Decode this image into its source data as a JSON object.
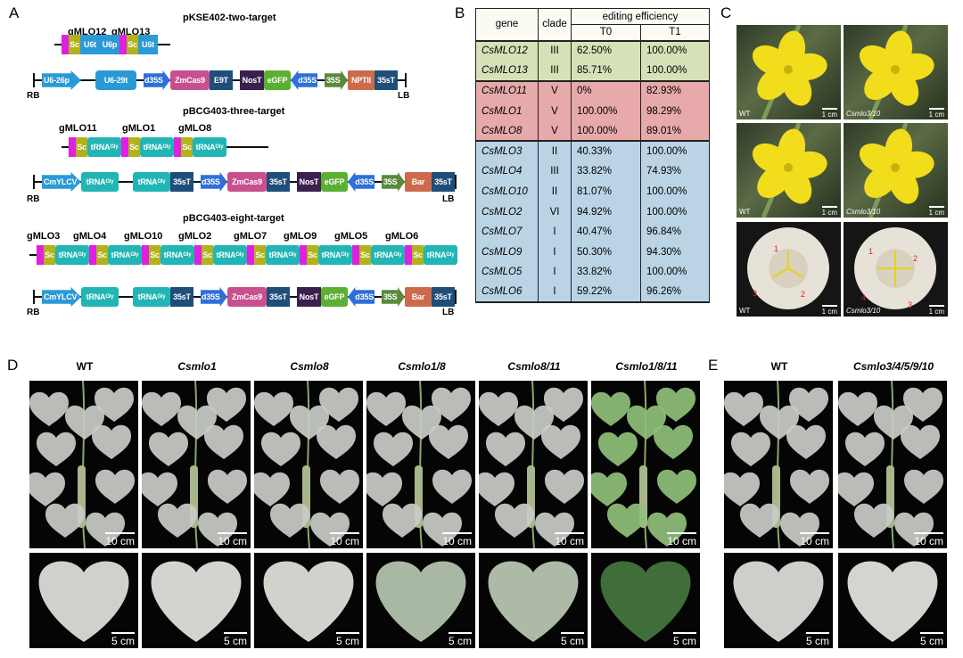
{
  "panels": {
    "A": "A",
    "B": "B",
    "C": "C",
    "D": "D",
    "E": "E"
  },
  "constructs": [
    {
      "title": "pKSE402-two-target",
      "guides": [
        "gMLO12",
        "gMLO13"
      ],
      "insert": [
        {
          "k": "mag",
          "t": ""
        },
        {
          "k": "sc",
          "t": "Sc"
        },
        {
          "k": "u6",
          "t": "U6t"
        },
        {
          "k": "u6",
          "t": "U6p"
        },
        {
          "k": "mag",
          "t": ""
        },
        {
          "k": "sc",
          "t": "Sc"
        },
        {
          "k": "u6",
          "t": "U6t"
        }
      ],
      "main": [
        {
          "k": "bar",
          "t": ""
        },
        {
          "k": "line",
          "t": ""
        },
        {
          "k": "arrowr",
          "t": "U6-26p"
        },
        {
          "k": "line",
          "t": ""
        },
        {
          "k": "line",
          "t": ""
        },
        {
          "k": "u6box",
          "t": "U6-29t"
        },
        {
          "k": "line",
          "t": ""
        },
        {
          "k": "arrowd",
          "t": "d35S"
        },
        {
          "k": "cas",
          "t": "ZmCas9"
        },
        {
          "k": "term",
          "t": "E9T"
        },
        {
          "k": "line",
          "t": ""
        },
        {
          "k": "nos",
          "t": "NosT"
        },
        {
          "k": "gfp",
          "t": "eGFP"
        },
        {
          "k": "arrowl",
          "t": "d35S"
        },
        {
          "k": "line",
          "t": ""
        },
        {
          "k": "arrowg",
          "t": "35S"
        },
        {
          "k": "sel",
          "t": "NPTII"
        },
        {
          "k": "term",
          "t": "35sT"
        },
        {
          "k": "line",
          "t": ""
        },
        {
          "k": "bar",
          "t": ""
        }
      ],
      "rb": "RB",
      "lb": "LB"
    },
    {
      "title": "pBCG403-three-target",
      "guides": [
        "gMLO11",
        "gMLO1",
        "gMLO8"
      ],
      "insert": [
        {
          "k": "mag",
          "t": ""
        },
        {
          "k": "sc",
          "t": "Sc"
        },
        {
          "k": "trna",
          "t": "tRNA",
          "sup": "Gly"
        },
        {
          "k": "mag",
          "t": ""
        },
        {
          "k": "sc",
          "t": "Sc"
        },
        {
          "k": "trna",
          "t": "tRNA",
          "sup": "Gly"
        },
        {
          "k": "mag",
          "t": ""
        },
        {
          "k": "sc",
          "t": "Sc"
        },
        {
          "k": "trna",
          "t": "tRNA",
          "sup": "Gly"
        }
      ],
      "main": [
        {
          "k": "bar",
          "t": ""
        },
        {
          "k": "line",
          "t": ""
        },
        {
          "k": "arrowr",
          "t": "CmYLCV"
        },
        {
          "k": "trna",
          "t": "tRNA",
          "sup": "Gly"
        },
        {
          "k": "line",
          "t": ""
        },
        {
          "k": "line",
          "t": ""
        },
        {
          "k": "trna",
          "t": "tRNA",
          "sup": "Gly"
        },
        {
          "k": "term",
          "t": "35sT"
        },
        {
          "k": "line",
          "t": ""
        },
        {
          "k": "arrowd",
          "t": "d35S"
        },
        {
          "k": "cas",
          "t": "ZmCas9"
        },
        {
          "k": "term",
          "t": "35sT"
        },
        {
          "k": "line",
          "t": ""
        },
        {
          "k": "nos",
          "t": "NosT"
        },
        {
          "k": "gfp",
          "t": "eGFP"
        },
        {
          "k": "arrowl",
          "t": "d35S"
        },
        {
          "k": "line",
          "t": ""
        },
        {
          "k": "arrowg",
          "t": "35S"
        },
        {
          "k": "sel",
          "t": "Bar"
        },
        {
          "k": "term",
          "t": "35sT"
        },
        {
          "k": "bar",
          "t": ""
        }
      ],
      "rb": "RB",
      "lb": "LB"
    },
    {
      "title": "pBCG403-eight-target",
      "guides": [
        "gMLO3",
        "gMLO4",
        "gMLO10",
        "gMLO2",
        "gMLO7",
        "gMLO9",
        "gMLO5",
        "gMLO6"
      ],
      "insert": [
        {
          "k": "mag",
          "t": ""
        },
        {
          "k": "sc",
          "t": "Sc"
        },
        {
          "k": "trna",
          "t": "tRNA",
          "sup": "Gly"
        },
        {
          "k": "mag",
          "t": ""
        },
        {
          "k": "sc",
          "t": "Sc"
        },
        {
          "k": "trna",
          "t": "tRNA",
          "sup": "Gly"
        },
        {
          "k": "mag",
          "t": ""
        },
        {
          "k": "sc",
          "t": "Sc"
        },
        {
          "k": "trna",
          "t": "tRNA",
          "sup": "Gly"
        },
        {
          "k": "mag",
          "t": ""
        },
        {
          "k": "sc",
          "t": "Sc"
        },
        {
          "k": "trna",
          "t": "tRNA",
          "sup": "Gly"
        },
        {
          "k": "mag",
          "t": ""
        },
        {
          "k": "sc",
          "t": "Sc"
        },
        {
          "k": "trna",
          "t": "tRNA",
          "sup": "Gly"
        },
        {
          "k": "mag",
          "t": ""
        },
        {
          "k": "sc",
          "t": "Sc"
        },
        {
          "k": "trna",
          "t": "tRNA",
          "sup": "Gly"
        },
        {
          "k": "mag",
          "t": ""
        },
        {
          "k": "sc",
          "t": "Sc"
        },
        {
          "k": "trna",
          "t": "tRNA",
          "sup": "Gly"
        },
        {
          "k": "mag",
          "t": ""
        },
        {
          "k": "sc",
          "t": "Sc"
        },
        {
          "k": "trna",
          "t": "tRNA",
          "sup": "Gly"
        }
      ],
      "main": [
        {
          "k": "bar",
          "t": ""
        },
        {
          "k": "line",
          "t": ""
        },
        {
          "k": "arrowr",
          "t": "CmYLCV"
        },
        {
          "k": "trna",
          "t": "tRNA",
          "sup": "Gly"
        },
        {
          "k": "line",
          "t": ""
        },
        {
          "k": "line",
          "t": ""
        },
        {
          "k": "trna",
          "t": "tRNA",
          "sup": "Gly"
        },
        {
          "k": "term",
          "t": "35sT"
        },
        {
          "k": "line",
          "t": ""
        },
        {
          "k": "arrowd",
          "t": "d35S"
        },
        {
          "k": "cas",
          "t": "ZmCas9"
        },
        {
          "k": "term",
          "t": "35sT"
        },
        {
          "k": "line",
          "t": ""
        },
        {
          "k": "nos",
          "t": "NosT"
        },
        {
          "k": "gfp",
          "t": "eGFP"
        },
        {
          "k": "arrowl",
          "t": "d35S"
        },
        {
          "k": "line",
          "t": ""
        },
        {
          "k": "arrowg",
          "t": "35S"
        },
        {
          "k": "sel",
          "t": "Bar"
        },
        {
          "k": "term",
          "t": "35sT"
        },
        {
          "k": "bar",
          "t": ""
        }
      ],
      "rb": "RB",
      "lb": "LB"
    }
  ],
  "table": {
    "headers": {
      "gene": "gene",
      "clade": "clade",
      "eff": "editing efficiency",
      "t0": "T0",
      "t1": "T1"
    },
    "groups": [
      {
        "color": "#d5e2b8",
        "rows": [
          [
            "CsMLO12",
            "III",
            "62.50%",
            "100.00%"
          ],
          [
            "CsMLO13",
            "III",
            "85.71%",
            "100.00%"
          ]
        ]
      },
      {
        "color": "#e7a9a9",
        "rows": [
          [
            "CsMLO11",
            "V",
            "0%",
            "82.93%"
          ],
          [
            "CsMLO1",
            "V",
            "100.00%",
            "98.29%"
          ],
          [
            "CsMLO8",
            "V",
            "100.00%",
            "89.01%"
          ]
        ]
      },
      {
        "color": "#bad4e6",
        "rows": [
          [
            "CsMLO3",
            "II",
            "40.33%",
            "100.00%"
          ],
          [
            "CsMLO4",
            "III",
            "33.82%",
            "74.93%"
          ],
          [
            "CsMLO10",
            "II",
            "81.07%",
            "100.00%"
          ],
          [
            "CsMLO2",
            "VI",
            "94.92%",
            "100.00%"
          ],
          [
            "CsMLO7",
            "I",
            "40.47%",
            "96.84%"
          ],
          [
            "CsMLO9",
            "I",
            "50.30%",
            "94.30%"
          ],
          [
            "CsMLO5",
            "I",
            "33.82%",
            "100.00%"
          ],
          [
            "CsMLO6",
            "I",
            "59.22%",
            "96.26%"
          ]
        ]
      }
    ]
  },
  "panelC": {
    "photos": [
      {
        "kind": "flower",
        "caption": "WT",
        "scale": "1 cm"
      },
      {
        "kind": "flower",
        "caption": "Csmlo3/10",
        "scale": "1 cm"
      },
      {
        "kind": "flower",
        "caption": "WT",
        "scale": "1 cm"
      },
      {
        "kind": "flower",
        "caption": "Csmlo3/10",
        "scale": "1 cm"
      },
      {
        "kind": "section",
        "caption": "WT",
        "scale": "1 cm",
        "locules": [
          "1",
          "2",
          "3"
        ]
      },
      {
        "kind": "section",
        "caption": "Csmlo3/10",
        "scale": "1 cm",
        "locules": [
          "1",
          "2",
          "3",
          "4"
        ]
      }
    ]
  },
  "panelD": {
    "columns": [
      {
        "label": "WT",
        "italic": false,
        "leaf_color": "#cfd2cc",
        "plant_scale": "10 cm",
        "leaf_scale": "5 cm"
      },
      {
        "label": "Csmlo1",
        "italic": true,
        "leaf_color": "#d2d4cf",
        "plant_scale": "10 cm",
        "leaf_scale": "5 cm"
      },
      {
        "label": "Csmlo8",
        "italic": true,
        "leaf_color": "#d0d2cc",
        "plant_scale": "10 cm",
        "leaf_scale": "5 cm"
      },
      {
        "label": "Csmlo1/8",
        "italic": true,
        "leaf_color": "#a9b8a4",
        "plant_scale": "10 cm",
        "leaf_scale": "5 cm"
      },
      {
        "label": "Csmlo8/11",
        "italic": true,
        "leaf_color": "#adbaa8",
        "plant_scale": "10 cm",
        "leaf_scale": "5 cm"
      },
      {
        "label": "Csmlo1/8/11",
        "italic": true,
        "leaf_color": "#3f6e3a",
        "plant_scale": "10 cm",
        "leaf_scale": "5 cm"
      }
    ]
  },
  "panelE": {
    "columns": [
      {
        "label": "WT",
        "italic": false,
        "leaf_color": "#cdd0ca",
        "plant_scale": "10 cm",
        "leaf_scale": "5 cm"
      },
      {
        "label": "Csmlo3/4/5/9/10",
        "italic": true,
        "leaf_color": "#d3d5d0",
        "plant_scale": "10 cm",
        "leaf_scale": "5 cm"
      }
    ]
  }
}
